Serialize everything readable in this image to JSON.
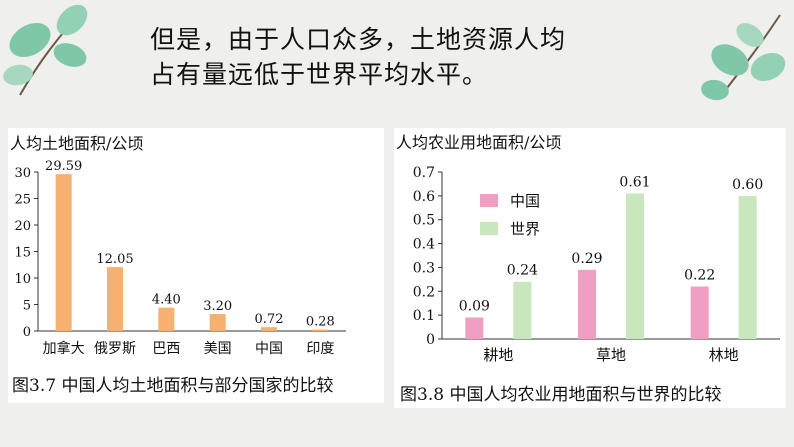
{
  "headline": {
    "line1": "但是，由于人口众多，土地资源人均",
    "line2": "占有量远低于世界平均水平。"
  },
  "colors": {
    "orange_bar": "#f6b070",
    "pink_bar": "#f09ec1",
    "green_bar": "#c9e7bd",
    "leaf": "#7fc7a6",
    "stem": "#6a5a40"
  },
  "chart_data": [
    {
      "type": "bar",
      "ylabel": "人均土地面积/公顷",
      "categories": [
        "加拿大",
        "俄罗斯",
        "巴西",
        "美国",
        "中国",
        "印度"
      ],
      "values": [
        29.59,
        12.05,
        4.4,
        3.2,
        0.72,
        0.28
      ],
      "data_labels": [
        "29.59",
        "12.05",
        "4.40",
        "3.20",
        "0.72",
        "0.28"
      ],
      "ylim": [
        0,
        30
      ],
      "yticks": [
        "0",
        "5",
        "10",
        "15",
        "20",
        "25",
        "30"
      ],
      "grid": false,
      "caption": "图3.7  中国人均土地面积与部分国家的比较"
    },
    {
      "type": "bar",
      "ylabel": "人均农业用地面积/公顷",
      "categories": [
        "耕地",
        "草地",
        "林地"
      ],
      "series": [
        {
          "name": "中国",
          "values": [
            0.09,
            0.29,
            0.22
          ],
          "labels": [
            "0.09",
            "0.29",
            "0.22"
          ]
        },
        {
          "name": "世界",
          "values": [
            0.24,
            0.61,
            0.6
          ],
          "labels": [
            "0.24",
            "0.61",
            "0.60"
          ]
        }
      ],
      "ylim": [
        0,
        0.7
      ],
      "yticks": [
        "0",
        "0.1",
        "0.2",
        "0.3",
        "0.4",
        "0.5",
        "0.6",
        "0.7"
      ],
      "legend": "top-left",
      "grid": false,
      "caption": "图3.8  中国人均农业用地面积与世界的比较"
    }
  ]
}
